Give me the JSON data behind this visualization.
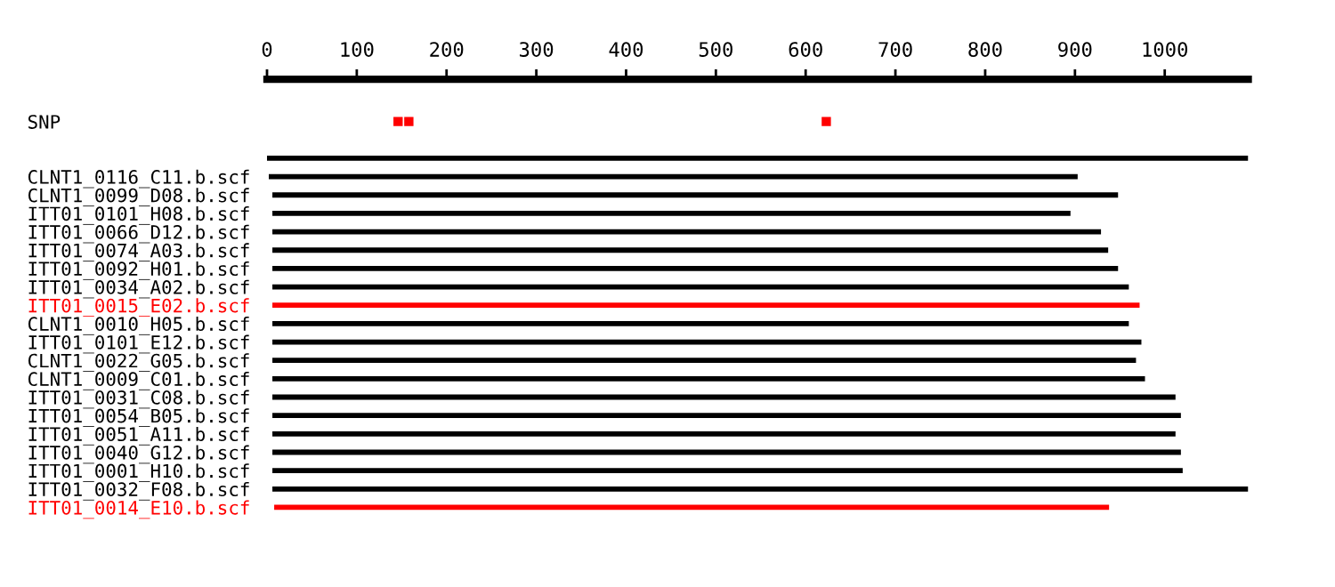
{
  "chart_data": {
    "type": "bar",
    "orientation": "horizontal",
    "categories": [
      "SNP",
      null,
      null,
      "CLNT1_0116_C11.b.scf",
      "CLNT1_0099_D08.b.scf",
      "ITT01_0101_H08.b.scf",
      "ITT01_0066_D12.b.scf",
      "ITT01_0074_A03.b.scf",
      "ITT01_0092_H01.b.scf",
      "ITT01_0034_A02.b.scf",
      "ITT01_0015_E02.b.scf",
      "CLNT1_0010_H05.b.scf",
      "ITT01_0101_E12.b.scf",
      "CLNT1_0022_G05.b.scf",
      "CLNT1_0009_C01.b.scf",
      "ITT01_0031_C08.b.scf",
      "ITT01_0054_B05.b.scf",
      "ITT01_0051_A11.b.scf",
      "ITT01_0040_G12.b.scf",
      "ITT01_0001_H10.b.scf",
      "ITT01_0032_F08.b.scf",
      "ITT01_0014_E10.b.scf"
    ],
    "series": [
      {
        "values": [
          null,
          null,
          1093,
          901,
          942,
          889,
          923,
          931,
          942,
          954,
          966,
          954,
          968,
          962,
          972,
          1006,
          1012,
          1006,
          1012,
          1014,
          1087,
          930
        ],
        "base": [
          null,
          null,
          0,
          2,
          6,
          6,
          6,
          6,
          6,
          6,
          6,
          6,
          6,
          6,
          6,
          6,
          6,
          6,
          6,
          6,
          6,
          8
        ],
        "colors": [
          "#000000",
          "#000000",
          "#000000",
          "#000000",
          "#000000",
          "#000000",
          "#000000",
          "#000000",
          "#000000",
          "#000000",
          "#ff0000",
          "#000000",
          "#000000",
          "#000000",
          "#000000",
          "#000000",
          "#000000",
          "#000000",
          "#000000",
          "#000000",
          "#000000",
          "#ff0000"
        ]
      },
      {
        "type": "scatter",
        "x": [
          "SNP",
          "SNP",
          "SNP"
        ],
        "values": [
          146,
          158,
          623
        ],
        "color": "#ff0000",
        "marker": "square"
      }
    ],
    "xlim": [
      0,
      1093
    ],
    "xticks": [
      0,
      100,
      200,
      300,
      400,
      500,
      600,
      700,
      800,
      900,
      1000
    ],
    "grid": false
  }
}
